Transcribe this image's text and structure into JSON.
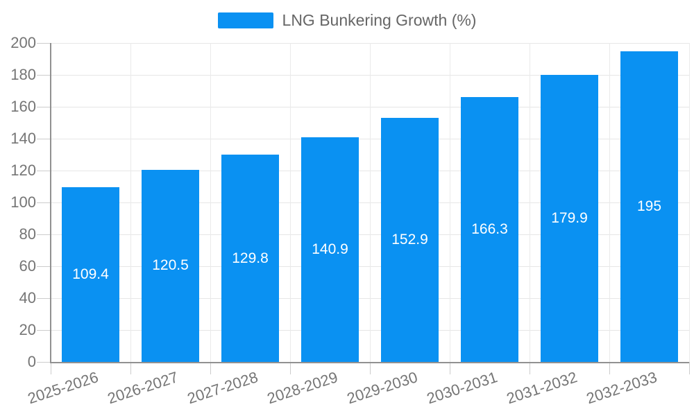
{
  "legend": {
    "label": "LNG Bunkering Growth (%)"
  },
  "chart_data": {
    "type": "bar",
    "title": "",
    "legend_entries": [
      "LNG Bunkering Growth (%)"
    ],
    "legend_position": "top-center",
    "categories": [
      "2025-2026",
      "2026-2027",
      "2027-2028",
      "2028-2029",
      "2029-2030",
      "2030-2031",
      "2031-2032",
      "2032-2033"
    ],
    "series": [
      {
        "name": "LNG Bunkering Growth (%)",
        "values": [
          109.4,
          120.5,
          129.8,
          140.9,
          152.9,
          166.3,
          179.9,
          195
        ]
      }
    ],
    "value_labels": [
      "109.4",
      "120.5",
      "129.8",
      "140.9",
      "152.9",
      "166.3",
      "179.9",
      "195"
    ],
    "xlabel": "",
    "ylabel": "",
    "ylim": [
      0,
      200
    ],
    "ytick_step": 20,
    "grid": true,
    "colors": {
      "bar": "#0a91f2",
      "value_label": "#ffffff",
      "axis_text": "#757575",
      "legend_text": "#666666",
      "gridline": "#e6e6e6",
      "axis_line": "#919191",
      "tick": "#cccccc",
      "background": "#ffffff"
    }
  }
}
